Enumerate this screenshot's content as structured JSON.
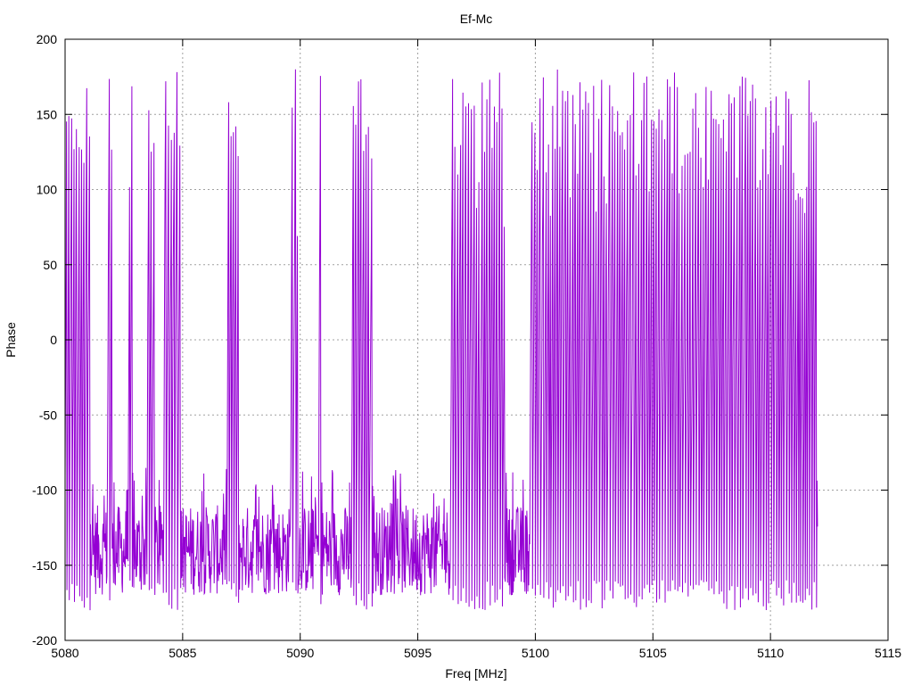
{
  "chart_data": {
    "type": "line",
    "title": "Ef-Mc",
    "xlabel": "Freq [MHz]",
    "ylabel": "Phase",
    "xlim": [
      5080,
      5115
    ],
    "ylim": [
      -200,
      200
    ],
    "xticks": [
      5080,
      5085,
      5090,
      5095,
      5100,
      5105,
      5110,
      5115
    ],
    "yticks": [
      -200,
      -150,
      -100,
      -50,
      0,
      50,
      100,
      150,
      200
    ],
    "grid": true,
    "legend": "none",
    "series": [
      {
        "color": "#9400d3",
        "x_start": 5080,
        "x_end": 5112,
        "y_range": [
          -180,
          180
        ],
        "wrapping_regions": [
          [
            5080.0,
            5081.1
          ],
          [
            5081.8,
            5082.0
          ],
          [
            5082.7,
            5082.9
          ],
          [
            5083.5,
            5083.8
          ],
          [
            5084.2,
            5084.9
          ],
          [
            5086.9,
            5087.4
          ],
          [
            5089.6,
            5089.9
          ],
          [
            5090.8,
            5090.9
          ],
          [
            5092.2,
            5093.1
          ],
          [
            5096.4,
            5098.7
          ],
          [
            5099.8,
            5112.0
          ]
        ],
        "baseline_phase": -140,
        "baseline_spread": 30,
        "sample_step": 0.02
      }
    ]
  }
}
